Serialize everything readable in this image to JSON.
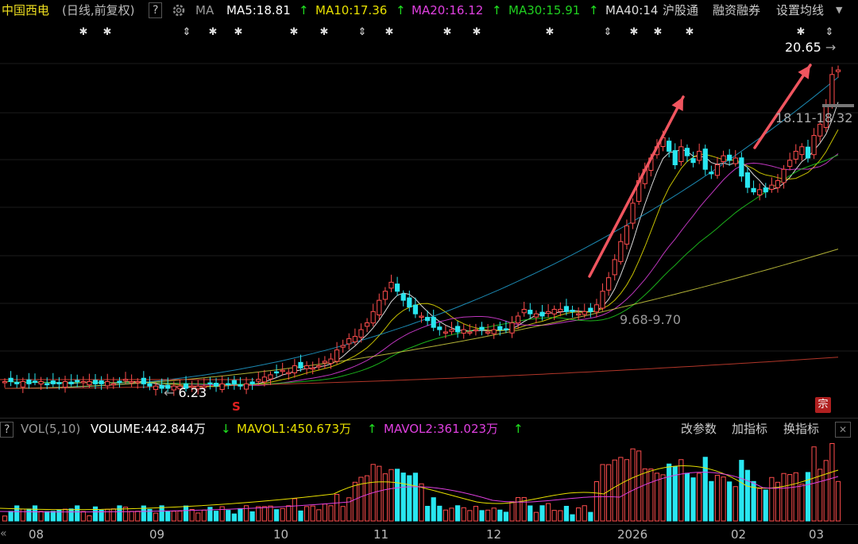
{
  "header": {
    "stock_name": "中国西电",
    "mode_label": "(日线,前复权)",
    "help_label": "?",
    "indicator_label": "MA",
    "ma5": "MA5:18.81",
    "ma10": "MA10:17.36",
    "ma20": "MA20:16.12",
    "ma30": "MA30:15.91",
    "ma40": "MA40:14",
    "hgt_label": "沪股通",
    "margin_label": "融资融券",
    "settings_label": "设置均线",
    "up_arrow": "↑",
    "down_arrow": "↓",
    "colors": {
      "ma5": "#ffffff",
      "ma10": "#e8e000",
      "ma20": "#e040e0",
      "ma30": "#20d020",
      "ma40": "#ffffff"
    }
  },
  "main_chart": {
    "high_label": "20.65",
    "low_label": "6.23",
    "range_label_1": "18.11-18.32",
    "range_label_2": "9.68-9.70",
    "signal_label": "S",
    "badge_label": "宗"
  },
  "volume": {
    "help_label": "?",
    "indicator_label": "VOL(5,10)",
    "volume": "VOLUME:442.844万",
    "mavol1": "MAVOL1:450.673万",
    "mavol2": "MAVOL2:361.023万",
    "change_params": "改参数",
    "add_indicator": "加指标",
    "switch_indicator": "换指标",
    "close_label": "✕"
  },
  "xaxis": {
    "labels": [
      "08",
      "09",
      "10",
      "11",
      "12",
      "2026",
      "02",
      "03"
    ]
  },
  "chart_data": {
    "type": "candlestick",
    "period": "daily",
    "months": [
      "08",
      "09",
      "10",
      "11",
      "12",
      "2026",
      "02",
      "03"
    ],
    "ma_values": {
      "MA5": 18.81,
      "MA10": 17.36,
      "MA20": 16.12,
      "MA30": 15.91,
      "MA40": 14
    },
    "annotated_prices": {
      "high": 20.65,
      "low": 6.23,
      "range_high": "18.11-18.32",
      "range_mid": "9.68-9.70"
    },
    "closes": [
      6.6,
      6.6,
      6.5,
      6.6,
      6.5,
      6.6,
      6.6,
      6.5,
      6.5,
      6.5,
      6.6,
      6.5,
      6.6,
      6.6,
      6.6,
      6.5,
      6.5,
      6.6,
      6.5,
      6.6,
      6.7,
      6.6,
      6.6,
      6.5,
      6.4,
      6.4,
      6.3,
      6.3,
      6.4,
      6.4,
      6.3,
      6.4,
      6.4,
      6.4,
      6.5,
      6.4,
      6.5,
      6.5,
      6.5,
      6.4,
      6.5,
      6.5,
      6.7,
      6.8,
      6.9,
      7.0,
      7.1,
      7.0,
      7.3,
      7.2,
      7.3,
      7.2,
      7.3,
      7.5,
      7.6,
      8.0,
      8.2,
      8.5,
      8.6,
      8.9,
      9.2,
      9.7,
      10.2,
      10.6,
      11.0,
      10.6,
      10.2,
      9.9,
      9.6,
      9.5,
      9.3,
      9.0,
      8.9,
      8.8,
      8.9,
      8.8,
      8.9,
      8.8,
      8.9,
      8.9,
      8.8,
      8.9,
      8.9,
      8.9,
      9.2,
      9.5,
      9.8,
      9.6,
      9.6,
      9.5,
      9.7,
      9.8,
      9.8,
      9.7,
      9.7,
      9.6,
      9.7,
      9.7,
      10.0,
      10.6,
      11.2,
      12.0,
      12.8,
      13.5,
      14.5,
      15.5,
      16.0,
      16.5,
      17.0,
      17.4,
      16.8,
      16.2,
      17.0,
      16.6,
      16.3,
      16.8,
      16.0,
      15.8,
      16.2,
      16.6,
      16.4,
      16.5,
      15.7,
      15.2,
      15.0,
      15.1,
      15.0,
      15.3,
      15.5,
      16.0,
      16.4,
      16.8,
      17.0,
      16.5,
      17.5,
      18.0,
      18.8,
      20.2,
      20.4
    ]
  }
}
